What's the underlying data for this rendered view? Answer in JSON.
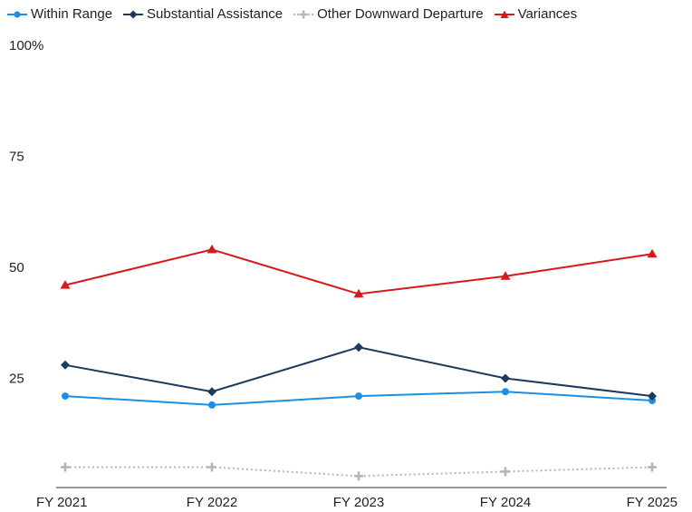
{
  "chart_data": {
    "type": "line",
    "categories": [
      "FY 2021",
      "FY 2022",
      "FY 2023",
      "FY 2024",
      "FY 2025"
    ],
    "ylim": [
      0,
      100
    ],
    "ytick_labels": [
      "100%",
      "75",
      "50",
      "25"
    ],
    "legend_position": "top-left",
    "grid": false,
    "series": [
      {
        "name": "Within Range",
        "values": [
          21,
          19,
          21,
          22,
          20
        ],
        "color": "#1a8fe3",
        "marker": "circle",
        "dashed": false
      },
      {
        "name": "Substantial Assistance",
        "values": [
          28,
          22,
          32,
          25,
          21
        ],
        "color": "#1b3a5c",
        "marker": "diamond",
        "dashed": false
      },
      {
        "name": "Other Downward Departure",
        "values": [
          5,
          5,
          3,
          4,
          5
        ],
        "color": "#b5b5b5",
        "marker": "plus",
        "dashed": true
      },
      {
        "name": "Variances",
        "values": [
          46,
          54,
          44,
          48,
          53
        ],
        "color": "#d7191c",
        "marker": "triangle",
        "dashed": false
      }
    ]
  }
}
